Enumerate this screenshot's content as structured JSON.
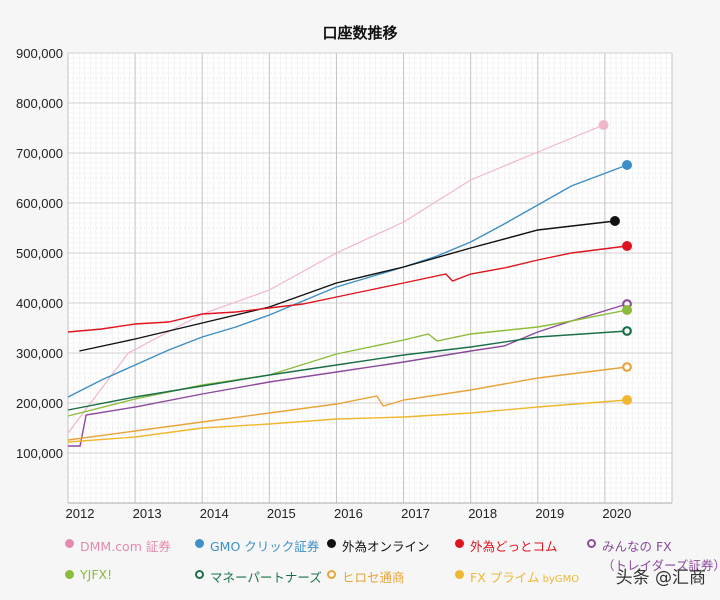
{
  "chart_data": {
    "type": "line",
    "title": "口座数推移",
    "xlabel": "",
    "ylabel": "",
    "xlim": [
      2012,
      2021
    ],
    "ylim": [
      0,
      900000
    ],
    "x_ticks": [
      "2012",
      "2013",
      "2014",
      "2015",
      "2016",
      "2017",
      "2018",
      "2019",
      "2020"
    ],
    "y_ticks": [
      "100,000",
      "200,000",
      "300,000",
      "400,000",
      "500,000",
      "600,000",
      "700,000",
      "800,000",
      "900,000"
    ],
    "grid": true,
    "legend_position": "bottom",
    "series": [
      {
        "name": "DMM.com 証券",
        "color": "#f2b6ca",
        "legend_color": "#e58ab0",
        "marker": "filled",
        "points": [
          [
            2012,
            140000
          ],
          [
            2012.9,
            300000
          ],
          [
            2014,
            378000
          ],
          [
            2015,
            426000
          ],
          [
            2016,
            500000
          ],
          [
            2017,
            562000
          ],
          [
            2018,
            646000
          ],
          [
            2019,
            702000
          ],
          [
            2019.98,
            756000
          ]
        ]
      },
      {
        "name": "GMO クリック証券",
        "color": "#3d8fc6",
        "legend_color": "#3d8fc6",
        "marker": "filled",
        "points": [
          [
            2012,
            212000
          ],
          [
            2012.5,
            246000
          ],
          [
            2013,
            276000
          ],
          [
            2013.5,
            306000
          ],
          [
            2014,
            332000
          ],
          [
            2014.5,
            352000
          ],
          [
            2015,
            376000
          ],
          [
            2015.5,
            404000
          ],
          [
            2016,
            432000
          ],
          [
            2016.5,
            452000
          ],
          [
            2017,
            472000
          ],
          [
            2017.5,
            494000
          ],
          [
            2018,
            522000
          ],
          [
            2018.5,
            558000
          ],
          [
            2019,
            596000
          ],
          [
            2019.5,
            634000
          ],
          [
            2020.33,
            676000
          ]
        ]
      },
      {
        "name": "外為オンライン",
        "color": "#111111",
        "legend_color": "#111111",
        "marker": "filled",
        "points": [
          [
            2012.17,
            304000
          ],
          [
            2013,
            328000
          ],
          [
            2014,
            360000
          ],
          [
            2015,
            392000
          ],
          [
            2016,
            440000
          ],
          [
            2017,
            472000
          ],
          [
            2018,
            510000
          ],
          [
            2019,
            546000
          ],
          [
            2020.15,
            564000
          ]
        ]
      },
      {
        "name": "外為どっとコム",
        "color": "#e0141e",
        "legend_color": "#e0141e",
        "marker": "filled",
        "points": [
          [
            2012,
            342000
          ],
          [
            2012.5,
            348000
          ],
          [
            2013,
            358000
          ],
          [
            2013.5,
            362000
          ],
          [
            2014,
            378000
          ],
          [
            2014.5,
            382000
          ],
          [
            2015,
            390000
          ],
          [
            2015.5,
            398000
          ],
          [
            2016,
            412000
          ],
          [
            2016.5,
            426000
          ],
          [
            2017,
            440000
          ],
          [
            2017.63,
            458000
          ],
          [
            2017.73,
            444000
          ],
          [
            2018,
            458000
          ],
          [
            2018.5,
            470000
          ],
          [
            2019,
            486000
          ],
          [
            2019.5,
            500000
          ],
          [
            2020.33,
            514000
          ]
        ]
      },
      {
        "name": "みんなの FX",
        "name_sub": "（トレイダーズ証券）",
        "color": "#8b4a9c",
        "legend_color": "#8b4a9c",
        "marker": "hollow",
        "points": [
          [
            2012,
            114000
          ],
          [
            2012.18,
            114000
          ],
          [
            2012.27,
            176000
          ],
          [
            2013,
            192000
          ],
          [
            2014,
            218000
          ],
          [
            2015,
            242000
          ],
          [
            2016,
            262000
          ],
          [
            2017,
            282000
          ],
          [
            2018,
            304000
          ],
          [
            2018.5,
            314000
          ],
          [
            2019,
            342000
          ],
          [
            2019.5,
            364000
          ],
          [
            2020.33,
            398000
          ]
        ]
      },
      {
        "name": "YJFX!",
        "color": "#8cba3a",
        "legend_color": "#8cba3a",
        "marker": "filled",
        "points": [
          [
            2012,
            174000
          ],
          [
            2013,
            208000
          ],
          [
            2014,
            236000
          ],
          [
            2015,
            256000
          ],
          [
            2016,
            298000
          ],
          [
            2016.5,
            312000
          ],
          [
            2017,
            326000
          ],
          [
            2017.37,
            338000
          ],
          [
            2017.5,
            324000
          ],
          [
            2018,
            338000
          ],
          [
            2019,
            352000
          ],
          [
            2019.5,
            364000
          ],
          [
            2020.33,
            386000
          ]
        ]
      },
      {
        "name": "マネーパートナーズ",
        "color": "#1a7048",
        "legend_color": "#1a7048",
        "marker": "hollow",
        "points": [
          [
            2012,
            186000
          ],
          [
            2013,
            212000
          ],
          [
            2014,
            234000
          ],
          [
            2015,
            256000
          ],
          [
            2016,
            276000
          ],
          [
            2017,
            296000
          ],
          [
            2018,
            312000
          ],
          [
            2019,
            332000
          ],
          [
            2020.33,
            344000
          ]
        ]
      },
      {
        "name": "ヒロセ通商",
        "color": "#e8a43a",
        "legend_color": "#e8a43a",
        "marker": "hollow",
        "points": [
          [
            2012,
            126000
          ],
          [
            2013,
            144000
          ],
          [
            2014,
            162000
          ],
          [
            2015,
            180000
          ],
          [
            2016,
            198000
          ],
          [
            2016.6,
            214000
          ],
          [
            2016.7,
            194000
          ],
          [
            2017,
            206000
          ],
          [
            2018,
            226000
          ],
          [
            2019,
            250000
          ],
          [
            2020.33,
            272000
          ]
        ]
      },
      {
        "name": "FX プライム",
        "name_small": "byGMO",
        "color": "#f0b830",
        "legend_color": "#f0b830",
        "marker": "filled",
        "points": [
          [
            2012,
            122000
          ],
          [
            2013,
            132000
          ],
          [
            2014,
            150000
          ],
          [
            2015,
            158000
          ],
          [
            2016,
            168000
          ],
          [
            2017,
            172000
          ],
          [
            2018,
            180000
          ],
          [
            2019,
            192000
          ],
          [
            2020.33,
            206000
          ]
        ]
      }
    ]
  },
  "watermark": "头条 @汇商"
}
